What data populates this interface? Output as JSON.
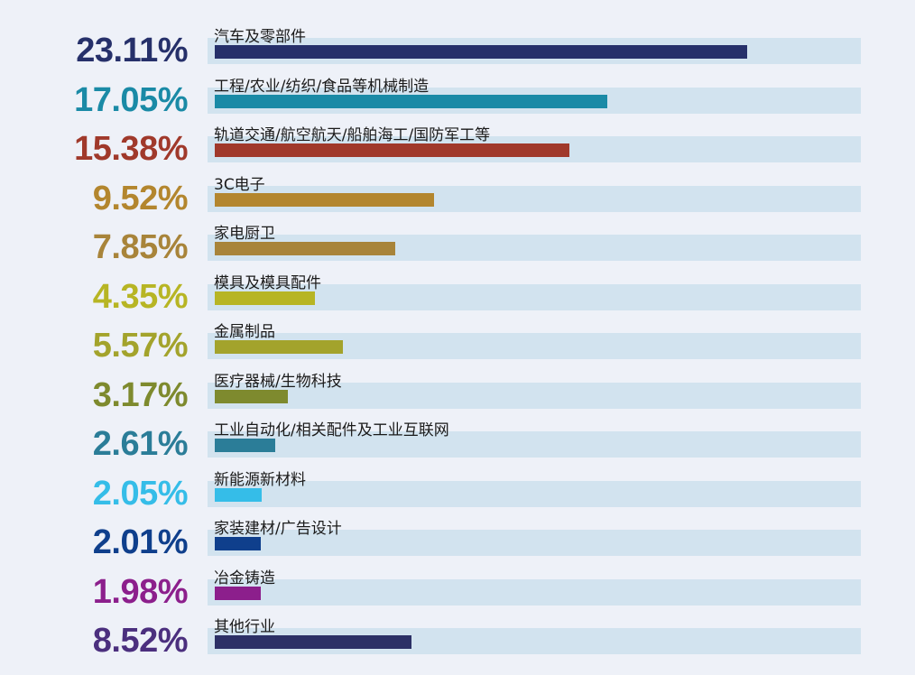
{
  "chart_data": {
    "type": "bar",
    "orientation": "horizontal",
    "title": "",
    "xlabel": "",
    "ylabel": "",
    "xlim": [
      0,
      28
    ],
    "grid": false,
    "legend": "none",
    "categories": [
      "汽车及零部件",
      "工程/农业/纺织/食品等机械制造",
      "轨道交通/航空航天/船舶海工/国防军工等",
      "3C电子",
      "家电厨卫",
      "模具及模具配件",
      "金属制品",
      "医疗器械/生物科技",
      "工业自动化/相关配件及工业互联网",
      "新能源新材料",
      "家装建材/广告设计",
      "冶金铸造",
      "其他行业"
    ],
    "values": [
      23.11,
      17.05,
      15.38,
      9.52,
      7.85,
      4.35,
      5.57,
      3.17,
      2.61,
      2.05,
      2.01,
      1.98,
      8.52
    ],
    "labels": [
      "23.11%",
      "17.05%",
      "15.38%",
      "9.52%",
      "7.85%",
      "4.35%",
      "5.57%",
      "3.17%",
      "2.61%",
      "2.05%",
      "2.01%",
      "1.98%",
      "8.52%"
    ],
    "colors": [
      "#26306a",
      "#1a8aa6",
      "#a0392b",
      "#b3862e",
      "#a8843a",
      "#b7b524",
      "#a3a32c",
      "#7e8a2e",
      "#2b7d98",
      "#35bde8",
      "#0f3f8c",
      "#8c1f8c",
      "#2c3066"
    ],
    "label_colors": [
      "#26306a",
      "#1a8aa6",
      "#a0392b",
      "#b3862e",
      "#a8843a",
      "#b7b524",
      "#a3a32c",
      "#7e8a2e",
      "#2b7d98",
      "#35bde8",
      "#0f3f8c",
      "#8c1f8c",
      "#4b2f7e"
    ],
    "track_color": "#d2e3ef",
    "background": "#eef1f8"
  }
}
